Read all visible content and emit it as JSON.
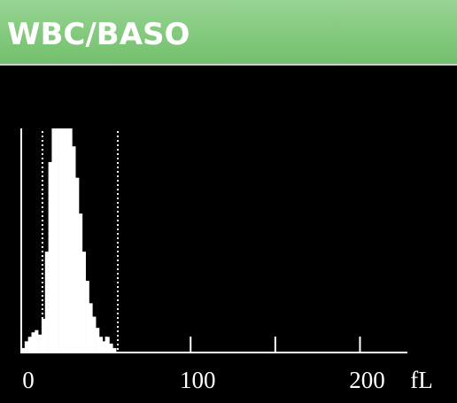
{
  "chart_data": {
    "type": "histogram",
    "title": "WBC/BASO",
    "x_label": "fL",
    "bins": [
      0,
      2,
      4,
      6,
      8,
      10,
      12,
      14,
      16,
      18,
      20,
      22,
      24,
      26,
      28,
      30,
      32,
      34,
      36,
      38,
      40,
      42,
      44,
      46,
      48,
      50,
      52,
      54,
      56
    ],
    "values": [
      2,
      5,
      7,
      9,
      10,
      8,
      15,
      45,
      85,
      100,
      100,
      100,
      100,
      100,
      100,
      92,
      78,
      62,
      45,
      32,
      22,
      16,
      11,
      7,
      5,
      7,
      4,
      2
    ],
    "color": "#ffffff",
    "xlim": [
      0,
      228
    ],
    "ylim": [
      0,
      100
    ],
    "xticks": [
      0,
      100,
      200
    ],
    "minor_xticks": [
      50,
      150
    ],
    "discriminators": [
      12.5,
      57
    ]
  }
}
